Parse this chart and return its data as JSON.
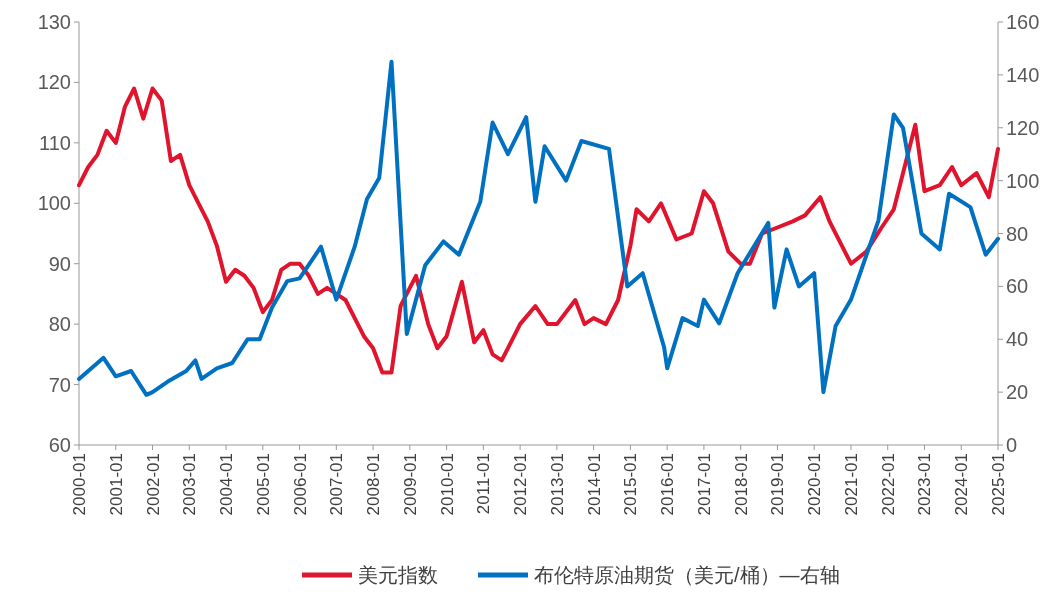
{
  "chart_data": {
    "type": "line",
    "xlim": [
      "2000-01",
      "2025-01"
    ],
    "xticks": [
      "2000-01",
      "2001-01",
      "2002-01",
      "2003-01",
      "2004-01",
      "2005-01",
      "2006-01",
      "2007-01",
      "2008-01",
      "2009-01",
      "2010-01",
      "2011-01",
      "2012-01",
      "2013-01",
      "2014-01",
      "2015-01",
      "2016-01",
      "2017-01",
      "2018-01",
      "2019-01",
      "2020-01",
      "2021-01",
      "2022-01",
      "2023-01",
      "2024-01",
      "2025-01"
    ],
    "ylim": [
      60,
      130
    ],
    "yticks": [
      60,
      70,
      80,
      90,
      100,
      110,
      120,
      130
    ],
    "y2lim": [
      0,
      160
    ],
    "y2ticks": [
      0,
      20,
      40,
      60,
      80,
      100,
      120,
      140,
      160
    ],
    "legend": "bottom",
    "grid": false,
    "marker": "none",
    "line_style": "solid",
    "series": [
      {
        "name": "美元指数",
        "color": "#e0142d",
        "x": [
          "2000-01",
          "2000-04",
          "2000-07",
          "2000-10",
          "2001-01",
          "2001-04",
          "2001-07",
          "2001-10",
          "2002-01",
          "2002-04",
          "2002-07",
          "2002-10",
          "2003-01",
          "2003-04",
          "2003-07",
          "2003-10",
          "2004-01",
          "2004-04",
          "2004-07",
          "2004-10",
          "2005-01",
          "2005-04",
          "2005-07",
          "2005-10",
          "2006-01",
          "2006-04",
          "2006-07",
          "2006-10",
          "2007-01",
          "2007-04",
          "2007-07",
          "2007-10",
          "2008-01",
          "2008-04",
          "2008-07",
          "2008-10",
          "2009-01",
          "2009-03",
          "2009-07",
          "2009-10",
          "2010-01",
          "2010-06",
          "2010-10",
          "2011-01",
          "2011-04",
          "2011-07",
          "2011-10",
          "2012-01",
          "2012-06",
          "2012-10",
          "2013-01",
          "2013-07",
          "2013-10",
          "2014-01",
          "2014-05",
          "2014-09",
          "2015-01",
          "2015-03",
          "2015-07",
          "2015-11",
          "2016-04",
          "2016-09",
          "2017-01",
          "2017-04",
          "2017-09",
          "2018-01",
          "2018-04",
          "2018-08",
          "2019-01",
          "2019-06",
          "2019-10",
          "2020-03",
          "2020-06",
          "2020-10",
          "2021-01",
          "2021-06",
          "2021-11",
          "2022-03",
          "2022-07",
          "2022-10",
          "2023-01",
          "2023-06",
          "2023-10",
          "2024-01",
          "2024-06",
          "2024-10",
          "2025-01"
        ],
        "values": [
          103,
          106,
          108,
          112,
          110,
          116,
          119,
          114,
          119,
          117,
          107,
          108,
          103,
          100,
          97,
          93,
          87,
          89,
          88,
          86,
          82,
          84,
          89,
          90,
          90,
          88,
          85,
          86,
          85,
          84,
          81,
          78,
          76,
          72,
          72,
          83,
          86,
          88,
          80,
          76,
          78,
          87,
          77,
          79,
          75,
          74,
          77,
          80,
          83,
          80,
          80,
          84,
          80,
          81,
          80,
          84,
          93,
          99,
          97,
          100,
          94,
          95,
          102,
          100,
          92,
          90,
          90,
          95,
          96,
          97,
          98,
          101,
          97,
          93,
          90,
          92,
          96,
          99,
          107,
          113,
          102,
          103,
          106,
          103,
          105,
          101,
          109
        ]
      },
      {
        "name": "布伦特原油期货（美元/桶）—右轴",
        "color": "#0070c0",
        "axis": "y2",
        "x": [
          "2000-01",
          "2000-09",
          "2001-01",
          "2001-06",
          "2001-11",
          "2002-01",
          "2002-06",
          "2002-12",
          "2003-03",
          "2003-05",
          "2003-10",
          "2004-03",
          "2004-08",
          "2004-12",
          "2005-04",
          "2005-09",
          "2006-01",
          "2006-08",
          "2007-01",
          "2007-07",
          "2007-11",
          "2008-03",
          "2008-07",
          "2008-12",
          "2009-06",
          "2009-12",
          "2010-05",
          "2010-12",
          "2011-04",
          "2011-09",
          "2012-03",
          "2012-06",
          "2012-09",
          "2013-04",
          "2013-09",
          "2014-06",
          "2014-12",
          "2015-05",
          "2015-12",
          "2016-01",
          "2016-06",
          "2016-11",
          "2017-01",
          "2017-06",
          "2017-12",
          "2018-10",
          "2018-12",
          "2019-04",
          "2019-08",
          "2020-01",
          "2020-04",
          "2020-08",
          "2021-01",
          "2021-10",
          "2022-03",
          "2022-06",
          "2022-12",
          "2023-06",
          "2023-09",
          "2024-04",
          "2024-09",
          "2025-01"
        ],
        "values": [
          25,
          33,
          26,
          28,
          19,
          20,
          24,
          28,
          32,
          25,
          29,
          31,
          40,
          40,
          52,
          62,
          63,
          75,
          55,
          75,
          93,
          101,
          145,
          42,
          68,
          77,
          72,
          92,
          122,
          110,
          124,
          92,
          113,
          100,
          115,
          112,
          60,
          65,
          37,
          29,
          48,
          45,
          55,
          46,
          65,
          84,
          52,
          74,
          60,
          65,
          20,
          45,
          55,
          85,
          125,
          120,
          80,
          74,
          95,
          90,
          72,
          78
        ]
      }
    ]
  }
}
